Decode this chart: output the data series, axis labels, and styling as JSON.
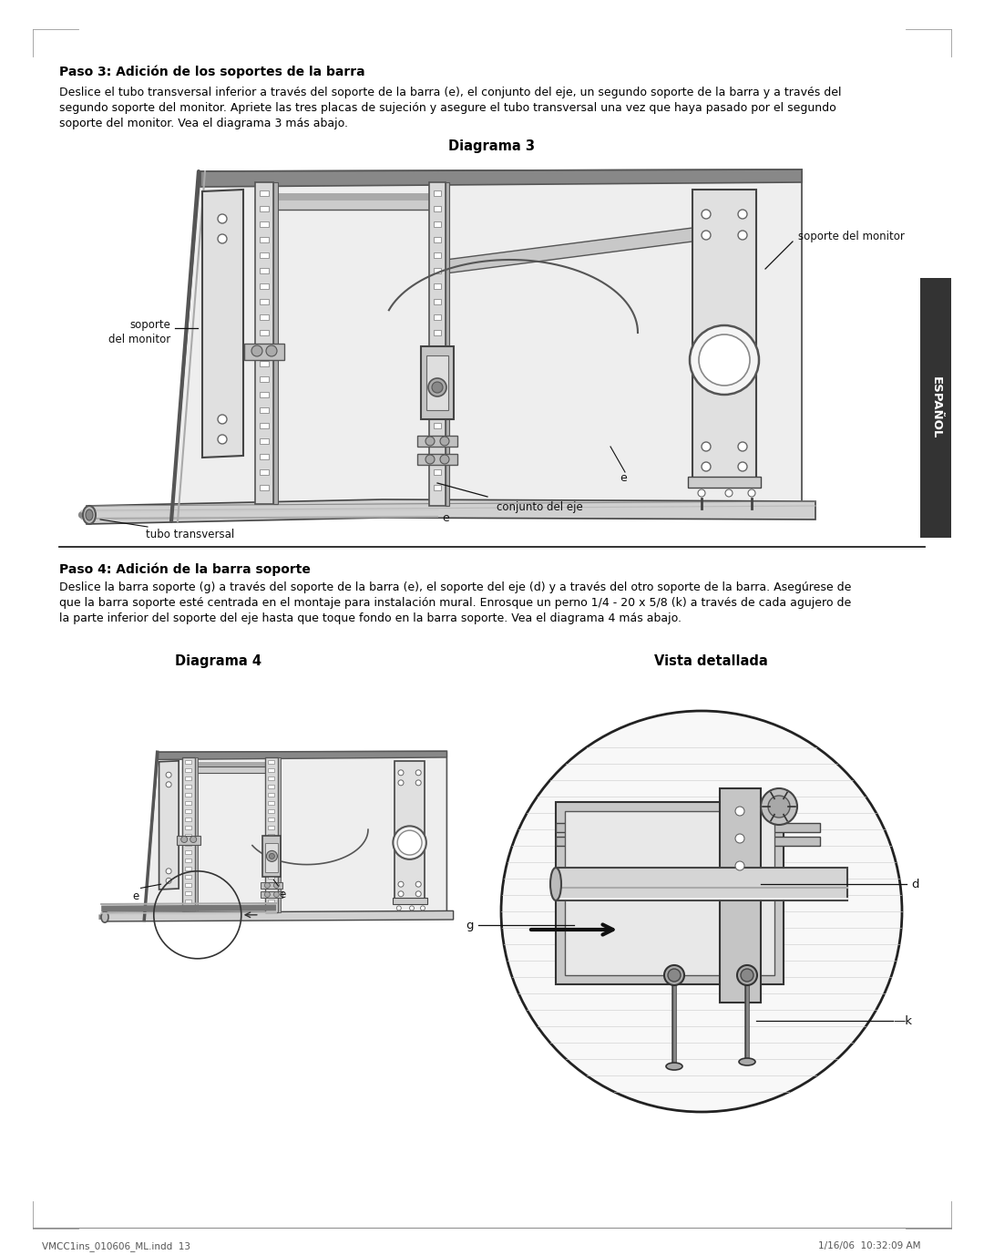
{
  "bg_color": "#ffffff",
  "page_width": 10.8,
  "page_height": 13.77,
  "heading1": "Paso 3: Adición de los soportes de la barra",
  "body1_line1": "Deslice el tubo transversal inferior a través del soporte de la barra (e), el conjunto del eje, un segundo soporte de la barra y a través del",
  "body1_line2": "segundo soporte del monitor. Apriete las tres placas de sujeción y asegure el tubo transversal una vez que haya pasado por el segundo",
  "body1_line3": "soporte del monitor. Vea el diagrama 3 más abajo.",
  "diagram3_title": "Diagrama 3",
  "heading2": "Paso 4: Adición de la barra soporte",
  "body2_line1": "Deslice la barra soporte (g) a través del soporte de la barra (e), el soporte del eje (d) y a través del otro soporte de la barra. Asegúrese de",
  "body2_line2": "que la barra soporte esté centrada en el montaje para instalación mural. Enrosque un perno 1/4 - 20 x 5/8 (k) a través de cada agujero de",
  "body2_line3": "la parte inferior del soporte del eje hasta que toque fondo en la barra soporte. Vea el diagrama 4 más abajo.",
  "diagram4_title": "Diagrama 4",
  "vista_title": "Vista detallada",
  "footer_left": "VMCC1ins_010606_ML.indd  13",
  "footer_right": "1/16/06  10:32:09 AM",
  "sidebar_text": "ESPAÑOL"
}
